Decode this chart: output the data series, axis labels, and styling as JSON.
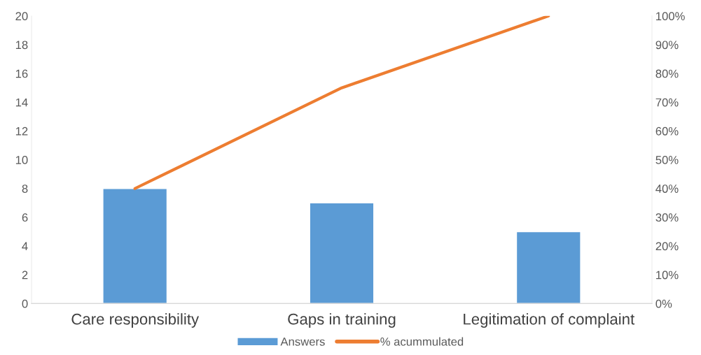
{
  "chart_data": {
    "type": "bar",
    "categories": [
      "Care responsibility",
      "Gaps in training",
      "Legitimation of complaint"
    ],
    "series": [
      {
        "name": "Answers",
        "color": "#5b9bd5",
        "values": [
          8,
          7,
          5
        ]
      },
      {
        "name": "% acummulated",
        "type": "line",
        "axis": "y2",
        "color": "#ed7d31",
        "values": [
          40,
          75,
          100
        ]
      }
    ],
    "ylim": [
      0,
      20
    ],
    "yticks": [
      0,
      2,
      4,
      6,
      8,
      10,
      12,
      14,
      16,
      18,
      20
    ],
    "y2lim": [
      0,
      100
    ],
    "y2ticks": [
      {
        "value": 0,
        "label": "0%"
      },
      {
        "value": 10,
        "label": "10%"
      },
      {
        "value": 20,
        "label": "20%"
      },
      {
        "value": 30,
        "label": "30%"
      },
      {
        "value": 40,
        "label": "40%"
      },
      {
        "value": 50,
        "label": "50%"
      },
      {
        "value": 60,
        "label": "60%"
      },
      {
        "value": 70,
        "label": "70%"
      },
      {
        "value": 80,
        "label": "80%"
      },
      {
        "value": 90,
        "label": "90%"
      },
      {
        "value": 100,
        "label": "100%"
      }
    ],
    "grid": false,
    "legend": "bottom",
    "marker": "none",
    "line_style": "solid"
  }
}
